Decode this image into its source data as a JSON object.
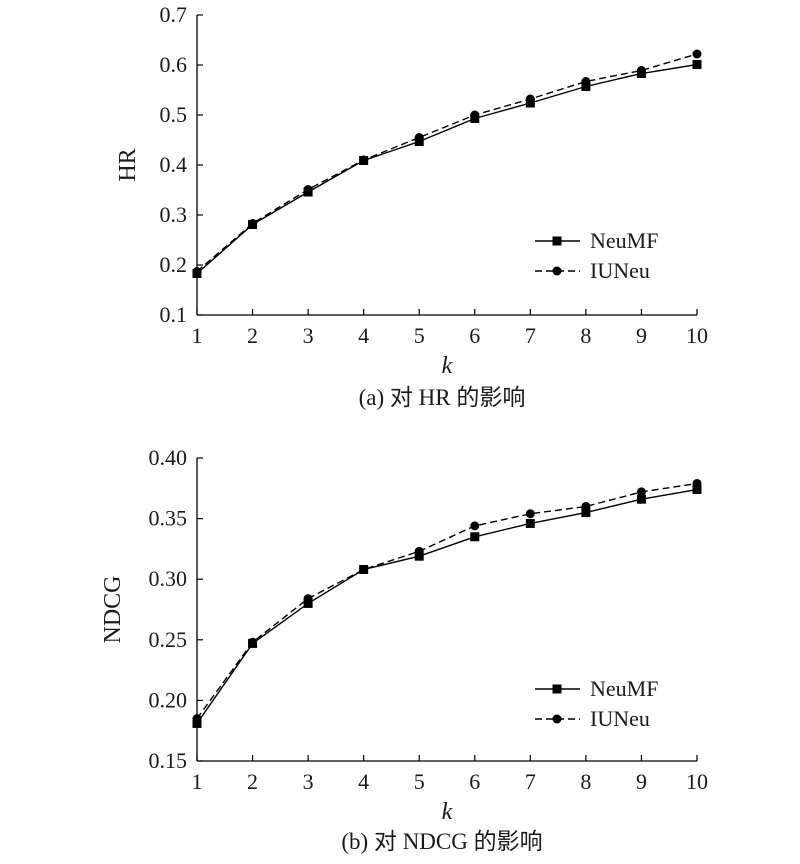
{
  "chart_data": [
    {
      "type": "line",
      "panel": "a",
      "caption": "(a) 对 HR 的影响",
      "xlabel": "k",
      "ylabel": "HR",
      "x": [
        1,
        2,
        3,
        4,
        5,
        6,
        7,
        8,
        9,
        10
      ],
      "xlim": [
        1,
        10
      ],
      "ylim": [
        0.1,
        0.7
      ],
      "yticks": [
        "0.1",
        "0.2",
        "0.3",
        "0.4",
        "0.5",
        "0.6",
        "0.7"
      ],
      "xticks": [
        "1",
        "2",
        "3",
        "4",
        "5",
        "6",
        "7",
        "8",
        "9",
        "10"
      ],
      "legend_position": "bottom-right",
      "grid": false,
      "series": [
        {
          "name": "NeuMF",
          "style": "solid",
          "marker": "square",
          "color": "#000000",
          "values": [
            0.183,
            0.281,
            0.346,
            0.409,
            0.447,
            0.493,
            0.524,
            0.557,
            0.583,
            0.601
          ]
        },
        {
          "name": "IUNeu",
          "style": "dashed",
          "marker": "circle",
          "color": "#000000",
          "values": [
            0.187,
            0.283,
            0.351,
            0.41,
            0.455,
            0.5,
            0.532,
            0.567,
            0.589,
            0.622
          ]
        }
      ]
    },
    {
      "type": "line",
      "panel": "b",
      "caption": "(b) 对 NDCG 的影响",
      "xlabel": "k",
      "ylabel": "NDCG",
      "x": [
        1,
        2,
        3,
        4,
        5,
        6,
        7,
        8,
        9,
        10
      ],
      "xlim": [
        1,
        10
      ],
      "ylim": [
        0.15,
        0.4
      ],
      "yticks": [
        "0.15",
        "0.20",
        "0.25",
        "0.30",
        "0.35",
        "0.40"
      ],
      "xticks": [
        "1",
        "2",
        "3",
        "4",
        "5",
        "6",
        "7",
        "8",
        "9",
        "10"
      ],
      "legend_position": "bottom-right",
      "grid": false,
      "series": [
        {
          "name": "NeuMF",
          "style": "solid",
          "marker": "square",
          "color": "#000000",
          "values": [
            0.181,
            0.247,
            0.28,
            0.308,
            0.319,
            0.335,
            0.346,
            0.355,
            0.366,
            0.374
          ]
        },
        {
          "name": "IUNeu",
          "style": "dashed",
          "marker": "circle",
          "color": "#000000",
          "values": [
            0.185,
            0.248,
            0.284,
            0.308,
            0.323,
            0.344,
            0.354,
            0.36,
            0.372,
            0.379
          ]
        }
      ]
    }
  ]
}
